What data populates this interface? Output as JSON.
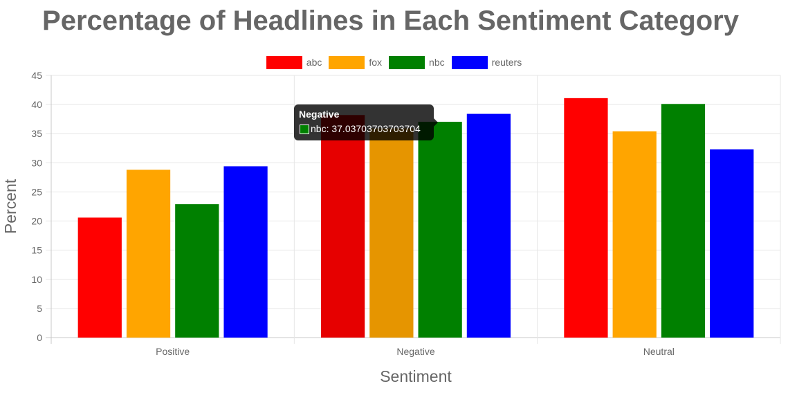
{
  "chart_data": {
    "type": "bar",
    "title": "Percentage of Headlines in Each Sentiment Category",
    "xlabel": "Sentiment",
    "ylabel": "Percent",
    "categories": [
      "Positive",
      "Negative",
      "Neutral"
    ],
    "ylim": [
      0,
      45
    ],
    "yticks": [
      0,
      5,
      10,
      15,
      20,
      25,
      30,
      35,
      40,
      45
    ],
    "grid": true,
    "legend_position": "top",
    "series": [
      {
        "name": "abc",
        "color": "#ff0000",
        "values": [
          20.6,
          38.2,
          41.1
        ]
      },
      {
        "name": "fox",
        "color": "#ffa500",
        "values": [
          28.8,
          35.9,
          35.4
        ]
      },
      {
        "name": "nbc",
        "color": "#008000",
        "values": [
          22.9,
          37.03703703703704,
          40.1
        ]
      },
      {
        "name": "reuters",
        "color": "#0000ff",
        "values": [
          29.4,
          38.4,
          32.3
        ]
      }
    ]
  },
  "tooltip": {
    "title": "Negative",
    "body": "nbc: 37.03703703703704",
    "series_color": "#008000",
    "active_category": 1,
    "active_series": 2
  }
}
